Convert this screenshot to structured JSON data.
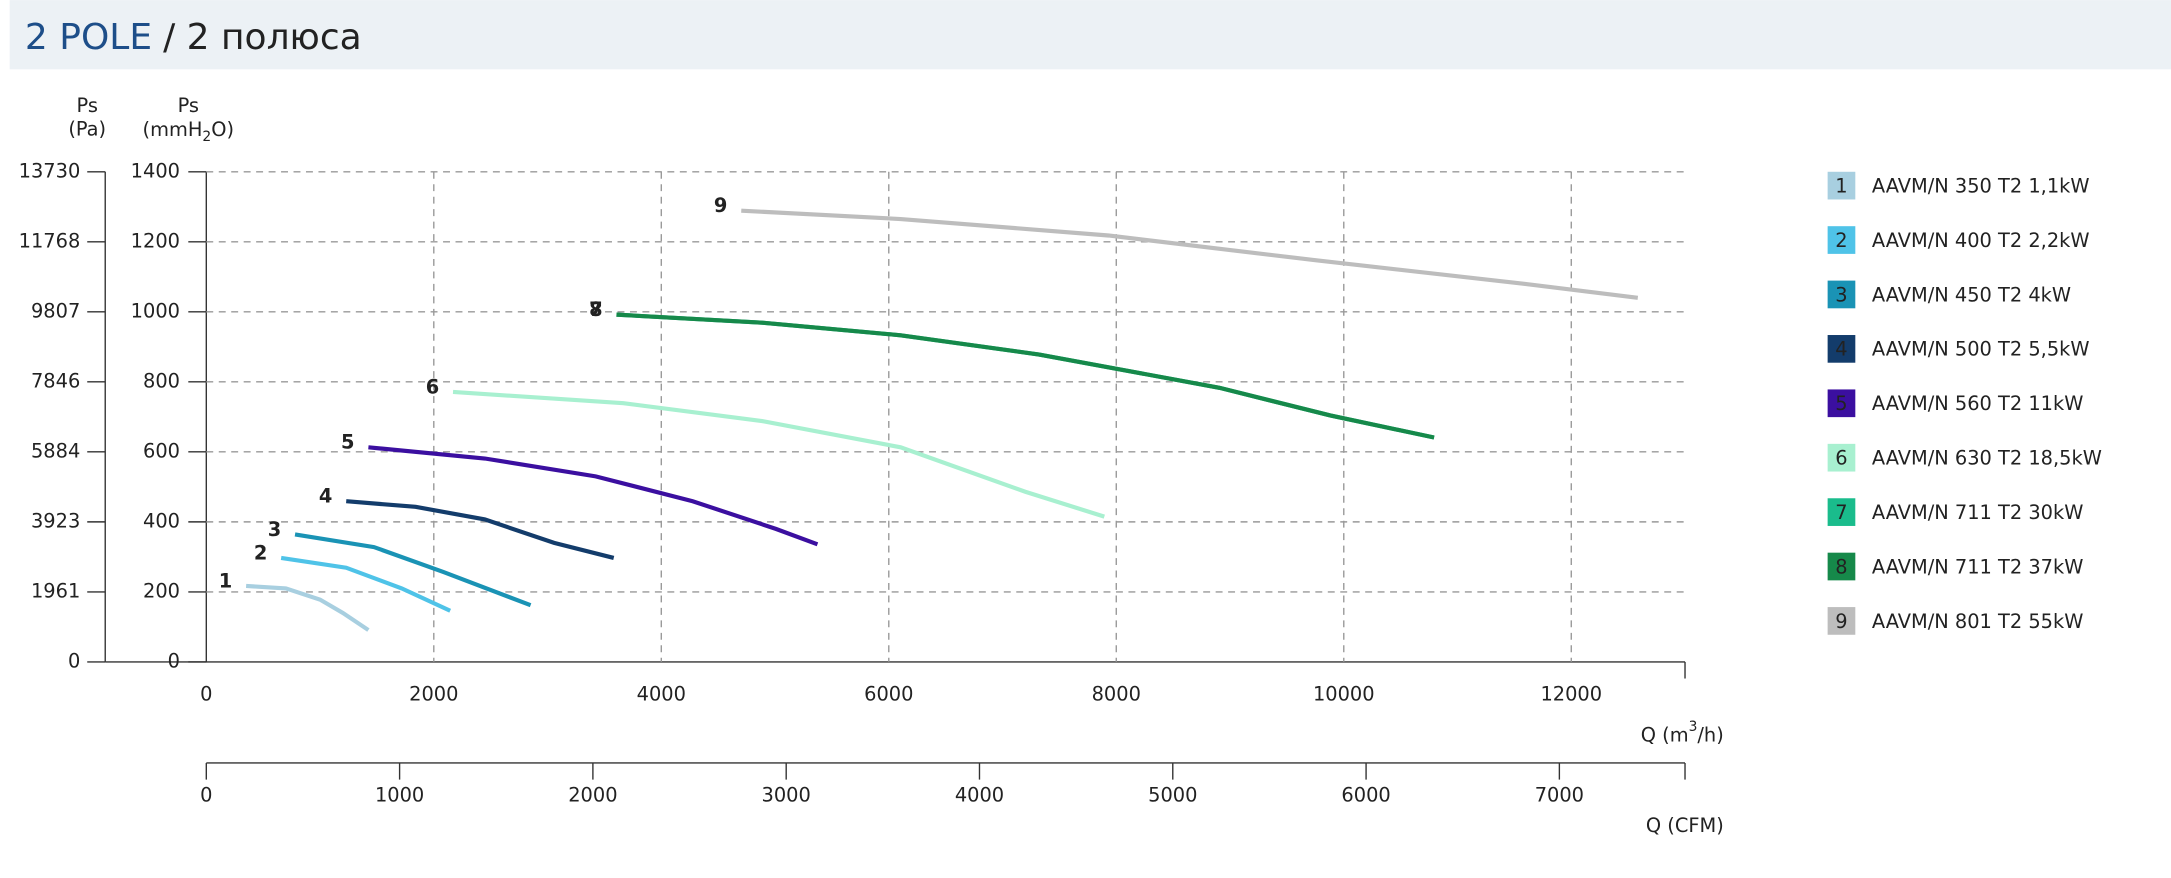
{
  "header": {
    "title_main": "2 POLE",
    "title_rest": "/ 2 полюса"
  },
  "chart_data": {
    "type": "line",
    "ylabel": {
      "line1": "Ps",
      "before": "(mmH",
      "sub": "2",
      "after": "O)"
    },
    "y2label": {
      "line1": "Ps",
      "line2": "(Pa)"
    },
    "xlabel": {
      "before": "Q (m",
      "sup": "3",
      "after": "/h)"
    },
    "x2label": "Q (CFM)",
    "xlim": [
      0,
      13000
    ],
    "xticks": [
      0,
      2000,
      4000,
      6000,
      8000,
      10000,
      12000
    ],
    "x2lim": [
      0,
      7650
    ],
    "x2ticks": [
      0,
      1000,
      2000,
      3000,
      4000,
      5000,
      6000,
      7000
    ],
    "ylim": [
      0,
      1400
    ],
    "yticks": [
      0,
      200,
      400,
      600,
      800,
      1000,
      1200,
      1400
    ],
    "y2lim": [
      0,
      13730
    ],
    "y2ticks": [
      0,
      1961,
      3923,
      5884,
      7846,
      9807,
      11768,
      13730
    ],
    "grid": true,
    "series": [
      {
        "label": "1",
        "name": "AAVM/N 350 T2 1,1kW",
        "color": "#a8cfe0",
        "x": [
          350,
          700,
          1000,
          1200,
          1425
        ],
        "values": [
          217,
          210,
          178,
          140,
          91
        ]
      },
      {
        "label": "2",
        "name": "AAVM/N 400 T2 2,2kW",
        "color": "#4fc3e8",
        "x": [
          658,
          1230,
          1718,
          2144
        ],
        "values": [
          297,
          269,
          210,
          146
        ]
      },
      {
        "label": "3",
        "name": "AAVM/N 450 T2 4kW",
        "color": "#1a93b5",
        "x": [
          780,
          1474,
          2083,
          2851
        ],
        "values": [
          364,
          328,
          257,
          162
        ]
      },
      {
        "label": "4",
        "name": "AAVM/N 500 T2 5,5kW",
        "color": "#133c6b",
        "x": [
          1230,
          1840,
          2449,
          3058,
          3582
        ],
        "values": [
          459,
          443,
          407,
          340,
          297
        ]
      },
      {
        "label": "5",
        "name": "AAVM/N 560 T2 11kW",
        "color": "#3b0fa0",
        "x": [
          1425,
          2449,
          3423,
          4276,
          5007,
          5373
        ],
        "values": [
          613,
          581,
          530,
          459,
          380,
          336
        ]
      },
      {
        "label": "6",
        "name": "AAVM/N 630 T2 18,5kW",
        "color": "#a8f0d0",
        "x": [
          2169,
          3667,
          4886,
          6104,
          7200,
          7895
        ],
        "values": [
          771,
          739,
          688,
          613,
          486,
          415
        ]
      },
      {
        "label": "7",
        "name": "AAVM/N 711 T2 30kW",
        "color": "#1abc8c",
        "x": [
          3606,
          4886,
          6104,
          7322,
          8906,
          9881,
          10794
        ],
        "values": [
          992,
          969,
          933,
          878,
          783,
          704,
          641
        ]
      },
      {
        "label": "8",
        "name": "AAVM/N 711 T2 37kW",
        "color": "#16894a",
        "x": [
          3606,
          4886,
          6104,
          7322,
          8906,
          9881,
          10794
        ],
        "values": [
          992,
          969,
          933,
          878,
          783,
          704,
          641
        ]
      },
      {
        "label": "9",
        "name": "AAVM/N 801 T2 55kW",
        "color": "#bdbdbd",
        "x": [
          4703,
          6104,
          7931,
          9759,
          11586,
          12585
        ],
        "values": [
          1289,
          1265,
          1218,
          1147,
          1080,
          1040
        ]
      }
    ]
  }
}
